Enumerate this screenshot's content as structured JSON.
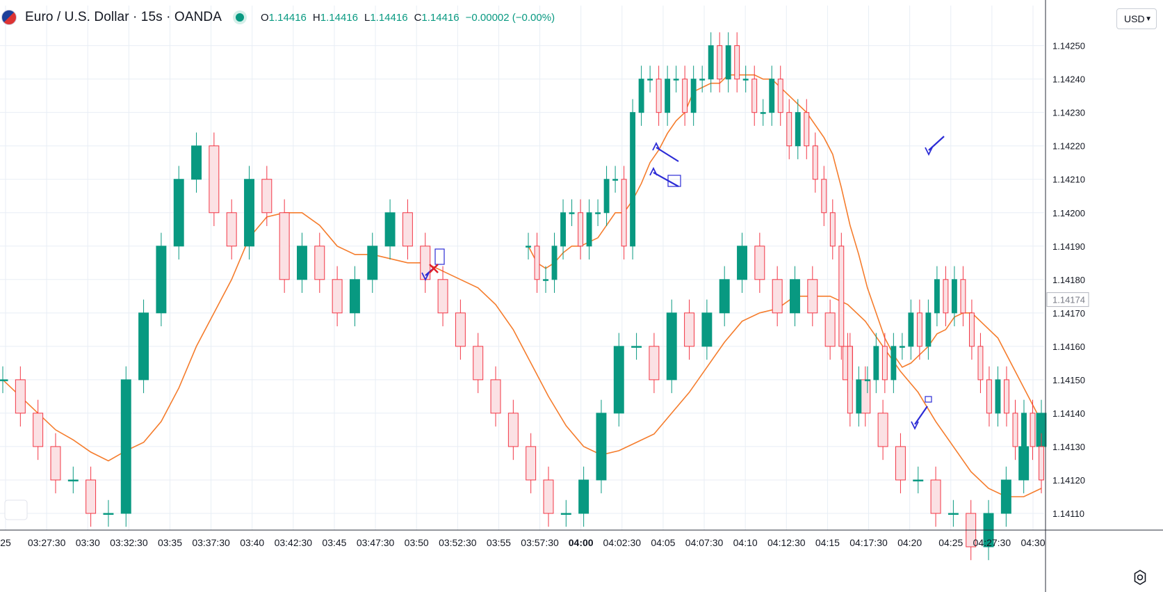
{
  "header": {
    "title": "Euro / U.S. Dollar · 15s · OANDA",
    "ohlc": [
      {
        "label": "O",
        "value": "1.14416"
      },
      {
        "label": "H",
        "value": "1.14416"
      },
      {
        "label": "L",
        "value": "1.14416"
      },
      {
        "label": "C",
        "value": "1.14416"
      }
    ],
    "change": "−0.00002 (−0.00%)"
  },
  "currency_button": {
    "label": "USD"
  },
  "colors": {
    "up": "#089981",
    "down": "#f23645",
    "ma": "#f57c2c",
    "arrow": "#2b2bd6",
    "grid": "#e8eef5"
  },
  "chart_data": {
    "type": "candlestick",
    "title": "",
    "ylim": [
      1.14105,
      1.14262
    ],
    "yticks": [
      "1.14250",
      "1.14240",
      "1.14230",
      "1.14220",
      "1.14210",
      "1.14200",
      "1.14190",
      "1.14180",
      "1.14170",
      "1.14160",
      "1.14150",
      "1.14140",
      "1.14130",
      "1.14120",
      "1.14110"
    ],
    "xticks": [
      "25",
      "03:27:30",
      "03:30",
      "03:32:30",
      "03:35",
      "03:37:30",
      "03:40",
      "03:42:30",
      "03:45",
      "03:47:30",
      "03:50",
      "03:52:30",
      "03:55",
      "03:57:30",
      "04:00",
      "04:02:30",
      "04:05",
      "04:07:30",
      "04:10",
      "04:12:30",
      "04:15",
      "04:17:30",
      "04:20",
      "04:25",
      "04:27:30",
      "04:30"
    ],
    "xtick_bold": "04:00",
    "last_price": "1.14174",
    "series": [
      {
        "values": [
          1.1415,
          1.1414,
          1.1413,
          1.1412,
          1.1412,
          1.1411,
          1.1411,
          1.1415,
          1.1417,
          1.1419,
          1.1421,
          1.1422,
          1.142,
          1.1419,
          1.1421,
          1.142,
          1.1418,
          1.1419,
          1.1418,
          1.1417,
          1.1418,
          1.1419,
          1.142,
          1.1419,
          1.1418,
          1.1417,
          1.1416,
          1.1415,
          1.1414,
          1.1413,
          1.1412,
          1.1411,
          1.1411,
          1.1412,
          1.1414,
          1.1416,
          1.1416,
          1.1415,
          1.1417,
          1.1416,
          1.1417,
          1.1418,
          1.1419,
          1.1418,
          1.1417,
          1.1418,
          1.1417,
          1.1416,
          1.1415,
          1.1414,
          1.1413,
          1.1412,
          1.1412,
          1.1411,
          1.1411,
          1.141,
          1.1411,
          1.1412,
          1.1413,
          1.1414
        ]
      },
      {
        "values": [
          1.1419,
          1.1418,
          1.1418,
          1.1419,
          1.142,
          1.142,
          1.1419,
          1.142,
          1.142,
          1.1421,
          1.1421,
          1.1419,
          1.1423,
          1.1424,
          1.1424,
          1.1423,
          1.1424,
          1.1424,
          1.1423,
          1.1424,
          1.1424,
          1.1425,
          1.1424,
          1.1425,
          1.1424,
          1.1424,
          1.1423,
          1.1423,
          1.1424,
          1.1423,
          1.1422,
          1.1423,
          1.1422,
          1.1421,
          1.142,
          1.1419,
          1.1416,
          1.1414,
          1.1415,
          1.1415,
          1.1416,
          1.1415,
          1.1416,
          1.1416,
          1.1417,
          1.1416,
          1.1417,
          1.1418,
          1.1417,
          1.1418,
          1.1417,
          1.1416,
          1.1415,
          1.1414,
          1.1415,
          1.1414,
          1.1413,
          1.1414,
          1.1413,
          1.1412
        ]
      }
    ]
  }
}
